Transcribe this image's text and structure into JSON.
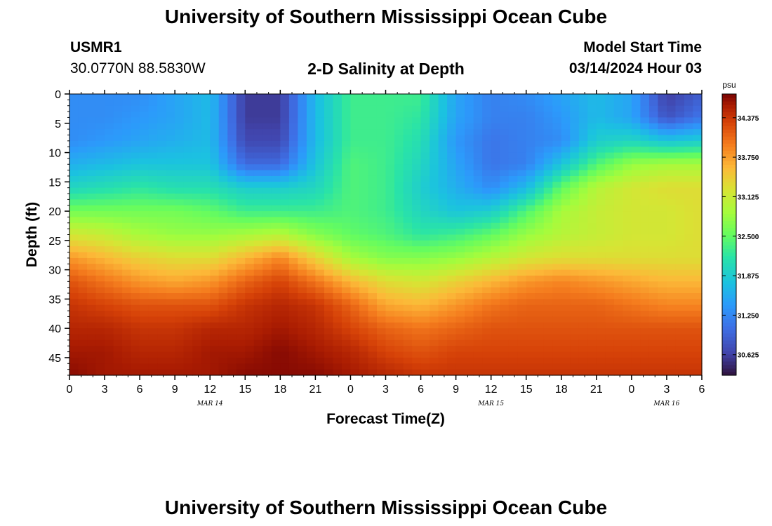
{
  "page": {
    "title_top": "University of Southern Mississippi Ocean Cube",
    "title_bottom": "University of Southern Mississippi Ocean Cube",
    "station_id": "USMR1",
    "station_coords": "30.0770N  88.5830W",
    "plot_title": "2-D Salinity at Depth",
    "model_start_label": "Model Start Time",
    "model_start_value": "03/14/2024 Hour 03"
  },
  "chart_data": {
    "type": "heatmap",
    "title": "2-D Salinity at Depth",
    "xlabel": "Forecast Time(Z)",
    "ylabel": "Depth (ft)",
    "x_start": "2024-03-14T00:00Z",
    "x_end": "2024-03-16T06:00Z",
    "xlim_hours": [
      0,
      54
    ],
    "ylim": [
      48,
      0
    ],
    "x_tick_hours": [
      0,
      3,
      6,
      9,
      12,
      15,
      18,
      21,
      24,
      27,
      30,
      33,
      36,
      39,
      42,
      45,
      48,
      51,
      54
    ],
    "x_tick_labels": [
      "0",
      "3",
      "6",
      "9",
      "12",
      "15",
      "18",
      "21",
      "0",
      "3",
      "6",
      "9",
      "12",
      "15",
      "18",
      "21",
      "0",
      "3",
      "6"
    ],
    "date_labels": [
      {
        "hour": 12,
        "text": "MAR 14"
      },
      {
        "hour": 36,
        "text": "MAR 15"
      },
      {
        "hour": 51,
        "text": "MAR 16"
      }
    ],
    "y_ticks": [
      0,
      5,
      10,
      15,
      20,
      25,
      30,
      35,
      40,
      45
    ],
    "y_tick_labels": [
      "0",
      "5",
      "10",
      "15",
      "20",
      "25",
      "30",
      "35",
      "40",
      "45"
    ],
    "colorbar": {
      "unit": "psu",
      "min": 30.3,
      "max": 34.75,
      "ticks": [
        30.625,
        31.25,
        31.875,
        32.5,
        33.125,
        33.75,
        34.375
      ],
      "tick_labels": [
        "30.625",
        "31.250",
        "31.875",
        "32.500",
        "33.125",
        "33.750",
        "34.375"
      ]
    },
    "grid": false,
    "depth_levels_ft": [
      0,
      4,
      8,
      12,
      16,
      20,
      24,
      28,
      32,
      36,
      40,
      44,
      48
    ],
    "time_hours": [
      0,
      3,
      6,
      9,
      12,
      15,
      18,
      21,
      24,
      27,
      30,
      33,
      36,
      39,
      42,
      45,
      48,
      51,
      54
    ],
    "salinity_psu": [
      [
        31.3,
        31.3,
        31.3,
        31.5,
        31.7,
        30.6,
        30.6,
        31.7,
        32.3,
        32.3,
        32.3,
        31.5,
        31.2,
        31.3,
        31.5,
        31.7,
        31.5,
        30.6,
        30.9
      ],
      [
        31.3,
        31.3,
        31.4,
        31.5,
        31.7,
        30.6,
        30.6,
        31.7,
        32.3,
        32.3,
        32.2,
        31.5,
        31.2,
        31.2,
        31.4,
        31.7,
        31.5,
        30.8,
        31.1
      ],
      [
        31.3,
        31.4,
        31.5,
        31.6,
        31.7,
        30.7,
        30.7,
        31.7,
        32.3,
        32.3,
        32.1,
        31.4,
        31.1,
        31.2,
        31.3,
        31.9,
        32.0,
        31.8,
        31.9
      ],
      [
        31.6,
        31.7,
        31.8,
        31.8,
        31.8,
        31.0,
        31.0,
        31.8,
        32.4,
        32.3,
        32.0,
        31.5,
        31.1,
        31.2,
        31.8,
        32.4,
        32.8,
        32.9,
        32.9
      ],
      [
        32.0,
        32.1,
        32.2,
        32.1,
        32.1,
        31.9,
        31.9,
        32.0,
        32.4,
        32.3,
        31.9,
        31.6,
        31.3,
        31.7,
        32.5,
        33.0,
        33.2,
        33.3,
        33.3
      ],
      [
        32.6,
        32.6,
        32.6,
        32.6,
        32.5,
        32.3,
        32.3,
        32.3,
        32.4,
        32.3,
        32.0,
        31.8,
        31.9,
        32.4,
        32.9,
        33.1,
        33.2,
        33.2,
        33.3
      ],
      [
        33.2,
        33.1,
        32.9,
        32.8,
        32.8,
        32.9,
        33.0,
        32.7,
        32.5,
        32.4,
        32.2,
        32.3,
        32.5,
        32.8,
        33.0,
        33.1,
        33.2,
        33.2,
        33.3
      ],
      [
        33.8,
        33.6,
        33.4,
        33.3,
        33.3,
        33.6,
        33.9,
        33.4,
        32.9,
        32.7,
        32.7,
        32.8,
        33.0,
        33.2,
        33.3,
        33.3,
        33.3,
        33.3,
        33.3
      ],
      [
        34.2,
        34.0,
        33.8,
        33.7,
        33.8,
        34.1,
        34.3,
        34.0,
        33.6,
        33.3,
        33.2,
        33.4,
        33.6,
        33.8,
        33.9,
        33.8,
        33.7,
        33.6,
        33.6
      ],
      [
        34.4,
        34.3,
        34.2,
        34.2,
        34.2,
        34.4,
        34.5,
        34.4,
        34.1,
        33.7,
        33.6,
        33.8,
        34.0,
        34.1,
        34.1,
        34.1,
        34.0,
        33.9,
        33.9
      ],
      [
        34.5,
        34.5,
        34.4,
        34.4,
        34.5,
        34.5,
        34.6,
        34.5,
        34.3,
        34.1,
        34.0,
        34.1,
        34.2,
        34.2,
        34.2,
        34.2,
        34.2,
        34.2,
        34.2
      ],
      [
        34.6,
        34.6,
        34.5,
        34.5,
        34.6,
        34.6,
        34.7,
        34.6,
        34.5,
        34.3,
        34.2,
        34.3,
        34.3,
        34.3,
        34.3,
        34.3,
        34.3,
        34.3,
        34.3
      ],
      [
        34.7,
        34.6,
        34.6,
        34.6,
        34.6,
        34.7,
        34.7,
        34.7,
        34.6,
        34.5,
        34.4,
        34.4,
        34.4,
        34.4,
        34.4,
        34.4,
        34.4,
        34.4,
        34.4
      ]
    ]
  }
}
